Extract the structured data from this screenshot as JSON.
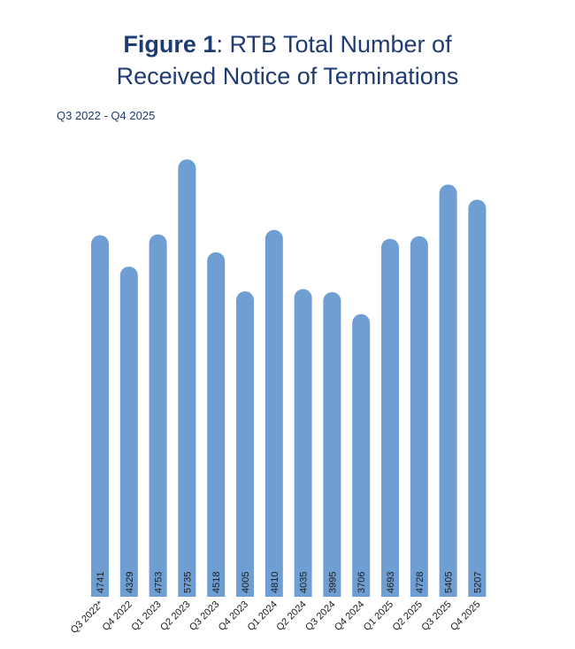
{
  "header": {
    "title_bold": "Figure 1",
    "title_rest_line1": ": RTB Total Number of",
    "title_line2": "Received Notice of Terminations",
    "subtitle": "Q3 2022 - Q4 2025"
  },
  "colors": {
    "bar": "#6f9fd2",
    "title": "#1f3b73"
  },
  "chart_data": {
    "type": "bar",
    "title": "Figure 1: RTB Total Number of Received Notice of Terminations",
    "subtitle": "Q3 2022 - Q4 2025",
    "xlabel": "",
    "ylabel": "",
    "ylim": [
      0,
      5735
    ],
    "grid": false,
    "legend": "none",
    "categories": [
      "Q3 2022*",
      "Q4 2022",
      "Q1 2023",
      "Q2 2023",
      "Q3 2023",
      "Q4 2023",
      "Q1 2024",
      "Q2 2024",
      "Q3 2024",
      "Q4 2024",
      "Q1 2025",
      "Q2 2025",
      "Q3 2025",
      "Q4 2025"
    ],
    "values": [
      4741,
      4329,
      4753,
      5735,
      4518,
      4005,
      4810,
      4035,
      3995,
      3706,
      4693,
      4728,
      5405,
      5207
    ],
    "labels": [
      "4741",
      "4329",
      "4753",
      "5735",
      "4518",
      "4005",
      "4810",
      "4035",
      "3995",
      "3706",
      "4693",
      "4728",
      "5405",
      "5207"
    ]
  }
}
